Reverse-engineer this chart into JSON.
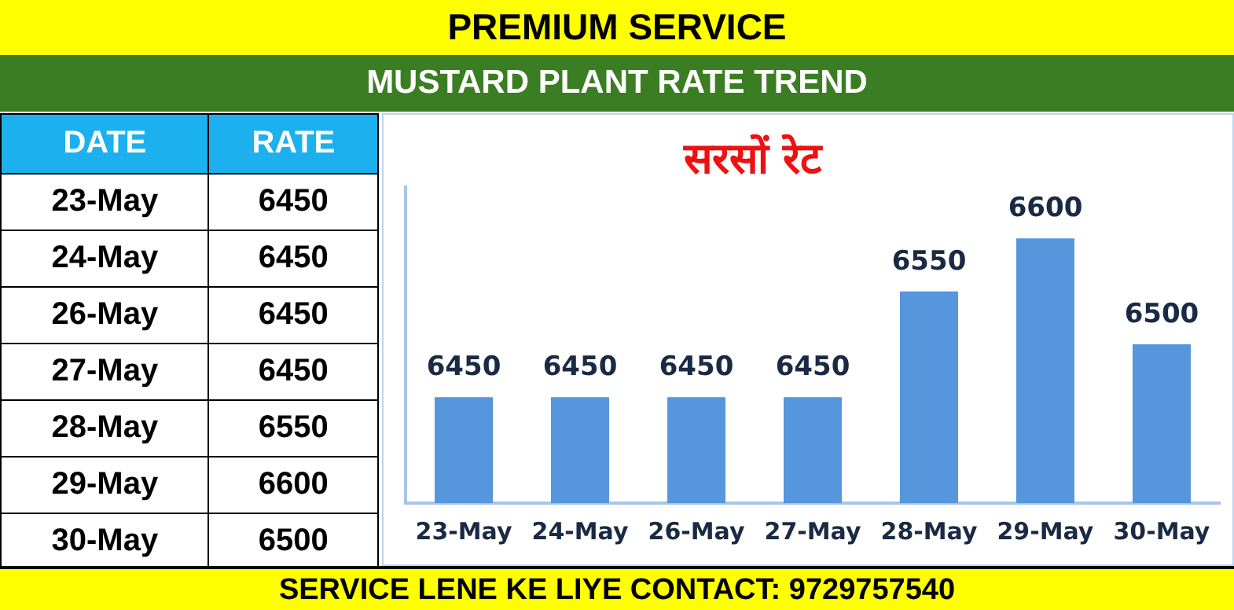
{
  "chart_data": [
    {
      "type": "other",
      "annotations": [
        "DATE",
        "RATE"
      ],
      "categories": [
        "23-May",
        "24-May",
        "26-May",
        "27-May",
        "28-May",
        "29-May",
        "30-May"
      ],
      "values": [
        6450,
        6450,
        6450,
        6450,
        6550,
        6600,
        6500
      ],
      "data_labels": true
    },
    {
      "type": "bar",
      "title": "सरसों रेट",
      "annotations": [
        "PREMIUM SERVICE",
        "MUSTARD PLANT RATE TREND",
        "SERVICE LENE KE LIYE CONTACT: 9729757540"
      ],
      "categories": [
        "23-May",
        "24-May",
        "26-May",
        "27-May",
        "28-May",
        "29-May",
        "30-May"
      ],
      "values": [
        6450,
        6450,
        6450,
        6450,
        6550,
        6600,
        6500
      ],
      "color": "#5596dc",
      "ylim": [
        6350,
        6650
      ],
      "tick_labels": "x",
      "data_labels": true
    }
  ]
}
